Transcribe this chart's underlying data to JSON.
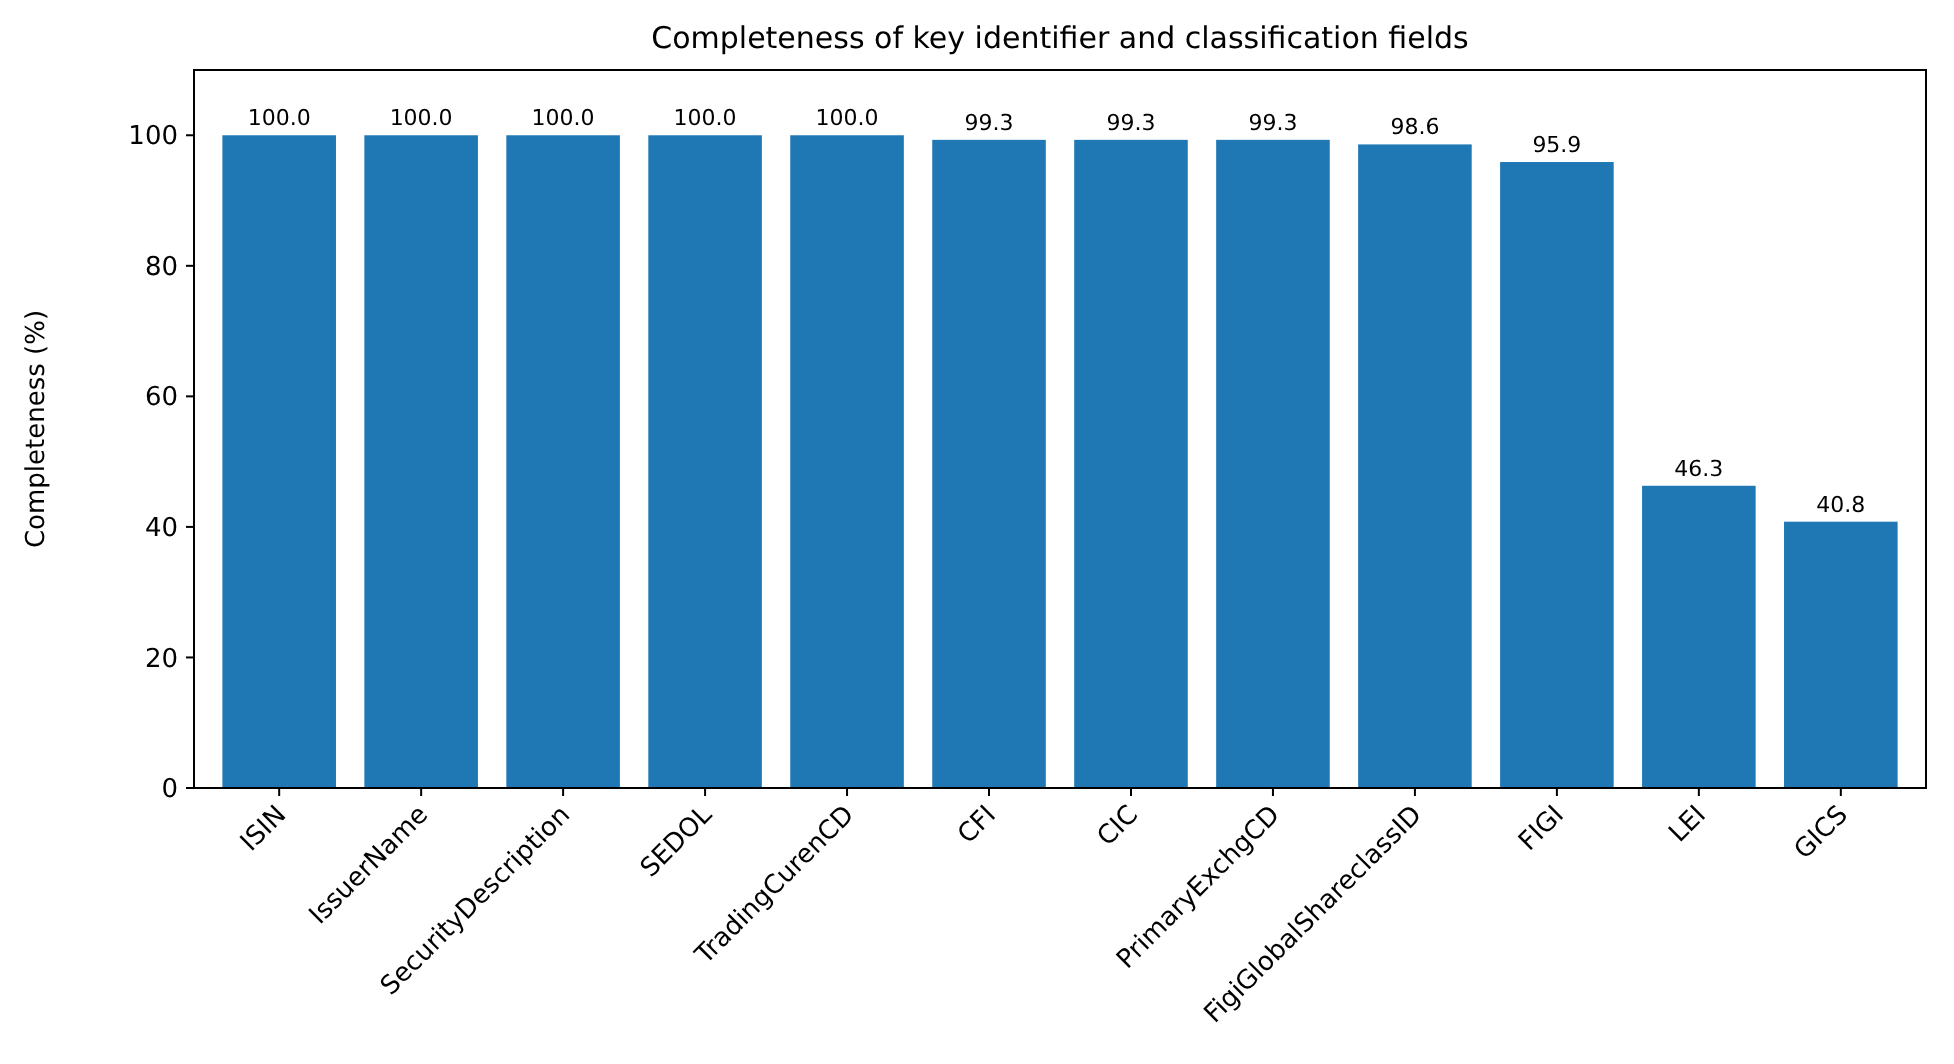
{
  "chart_data": {
    "type": "bar",
    "title": "Completeness of key identifier and classification fields",
    "ylabel": "Completeness (%)",
    "categories": [
      "ISIN",
      "IssuerName",
      "SecurityDescription",
      "SEDOL",
      "TradingCurenCD",
      "CFI",
      "CIC",
      "PrimaryExchgCD",
      "FigiGlobalShareclassID",
      "FIGI",
      "LEI",
      "GICS"
    ],
    "values": [
      100.0,
      100.0,
      100.0,
      100.0,
      100.0,
      99.3,
      99.3,
      99.3,
      98.6,
      95.9,
      46.3,
      40.8
    ],
    "value_labels": [
      "100.0",
      "100.0",
      "100.0",
      "100.0",
      "100.0",
      "99.3",
      "99.3",
      "99.3",
      "98.6",
      "95.9",
      "46.3",
      "40.8"
    ],
    "color": "#1f77b4",
    "ylim": [
      0,
      110
    ],
    "yticks": [
      0,
      20,
      40,
      60,
      80,
      100
    ],
    "grid": false
  }
}
